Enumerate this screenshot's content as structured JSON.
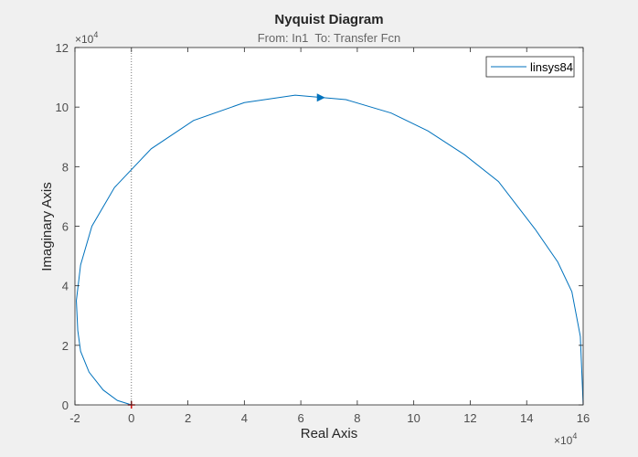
{
  "chart_data": {
    "type": "line",
    "title": "Nyquist Diagram",
    "subtitle": "From: In1  To: Transfer Fcn",
    "xlabel": "Real Axis",
    "ylabel": "Imaginary Axis",
    "x_exponent": "×10",
    "x_exponent_power": "4",
    "y_exponent": "×10",
    "y_exponent_power": "4",
    "xlim": [
      -2,
      16
    ],
    "ylim": [
      0,
      12
    ],
    "xticks": [
      -2,
      0,
      2,
      4,
      6,
      8,
      10,
      12,
      14,
      16
    ],
    "yticks": [
      0,
      2,
      4,
      6,
      8,
      10,
      12
    ],
    "grid": false,
    "legend_position": "top-right",
    "critical_point": [
      -1,
      0
    ],
    "series": [
      {
        "name": "linsys84",
        "color": "#0072BD",
        "x": [
          16,
          15.9,
          15.6,
          15.1,
          14.3,
          13.0,
          11.8,
          10.5,
          9.2,
          7.6,
          5.8,
          4.0,
          2.2,
          0.7,
          -0.6,
          -1.4,
          -1.8,
          -1.95,
          -1.9,
          -1.8,
          -1.5,
          -1.0,
          -0.5,
          0
        ],
        "y": [
          0.0,
          2.3,
          3.8,
          4.8,
          5.9,
          7.5,
          8.4,
          9.2,
          9.8,
          10.25,
          10.4,
          10.15,
          9.55,
          8.6,
          7.3,
          6.0,
          4.7,
          3.5,
          2.5,
          1.8,
          1.1,
          0.5,
          0.15,
          0.0
        ]
      }
    ],
    "direction_arrow": [
      6.7,
      10.32
    ]
  }
}
